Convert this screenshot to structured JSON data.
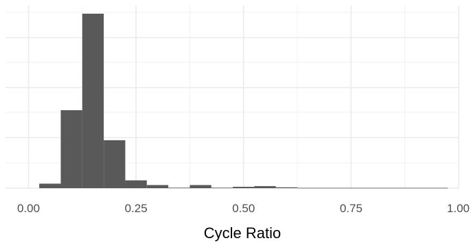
{
  "chart_data": {
    "type": "bar",
    "title": "",
    "xlabel": "Cycle Ratio",
    "ylabel": "",
    "xlim": [
      -0.025,
      1.0
    ],
    "ylim": [
      0,
      1
    ],
    "x_ticks": [
      {
        "value": 0.0,
        "label": "0.00"
      },
      {
        "value": 0.25,
        "label": "0.25"
      },
      {
        "value": 0.5,
        "label": "0.50"
      },
      {
        "value": 0.75,
        "label": "0.75"
      },
      {
        "value": 1.0,
        "label": "1.00"
      }
    ],
    "y_ticks_shown": false,
    "grid": true,
    "bin_width": 0.05,
    "bins": [
      {
        "x_start": 0.025,
        "x_end": 0.075,
        "value": 0.026
      },
      {
        "x_start": 0.075,
        "x_end": 0.125,
        "value": 0.447
      },
      {
        "x_start": 0.125,
        "x_end": 0.175,
        "value": 1.0
      },
      {
        "x_start": 0.175,
        "x_end": 0.225,
        "value": 0.275
      },
      {
        "x_start": 0.225,
        "x_end": 0.275,
        "value": 0.045
      },
      {
        "x_start": 0.275,
        "x_end": 0.325,
        "value": 0.018
      },
      {
        "x_start": 0.325,
        "x_end": 0.375,
        "value": 0.003
      },
      {
        "x_start": 0.375,
        "x_end": 0.425,
        "value": 0.018
      },
      {
        "x_start": 0.425,
        "x_end": 0.475,
        "value": 0.003
      },
      {
        "x_start": 0.475,
        "x_end": 0.525,
        "value": 0.008
      },
      {
        "x_start": 0.525,
        "x_end": 0.575,
        "value": 0.012
      },
      {
        "x_start": 0.575,
        "x_end": 0.625,
        "value": 0.005
      },
      {
        "x_start": 0.625,
        "x_end": 0.675,
        "value": 0.002
      },
      {
        "x_start": 0.675,
        "x_end": 0.725,
        "value": 0.002
      },
      {
        "x_start": 0.725,
        "x_end": 0.775,
        "value": 0.002
      },
      {
        "x_start": 0.775,
        "x_end": 0.825,
        "value": 0.002
      },
      {
        "x_start": 0.825,
        "x_end": 0.875,
        "value": 0.002
      },
      {
        "x_start": 0.875,
        "x_end": 0.925,
        "value": 0.002
      },
      {
        "x_start": 0.925,
        "x_end": 0.975,
        "value": 0.002
      }
    ],
    "colors": {
      "bar": "#595959",
      "grid_major": "#ebebeb",
      "grid_minor": "#f2f2f2",
      "background": "#ffffff"
    }
  }
}
